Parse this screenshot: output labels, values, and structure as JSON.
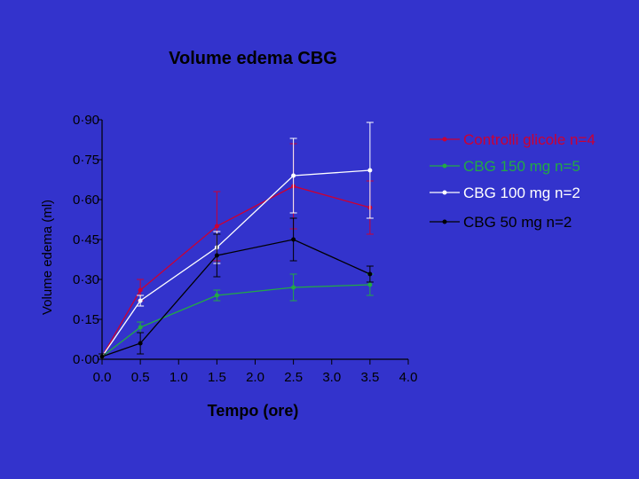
{
  "chart_data": {
    "type": "line",
    "title": "Volume edema CBG",
    "xlabel": "Tempo (ore)",
    "ylabel": "Volume edema (ml)",
    "xlim": [
      0,
      4
    ],
    "ylim": [
      0,
      0.9
    ],
    "x_ticks": [
      "0.0",
      "0.5",
      "1.0",
      "1.5",
      "2.0",
      "2.5",
      "3.0",
      "3.5",
      "4.0"
    ],
    "y_ticks": [
      "0·00",
      "0·15",
      "0·30",
      "0·45",
      "0·60",
      "0·75",
      "0·90"
    ],
    "grid": false,
    "legend_position": "right",
    "series": [
      {
        "name": "Controlli glicole n=4",
        "color": "#CC0033",
        "x": [
          0,
          0.5,
          1.5,
          2.5,
          3.5
        ],
        "y": [
          0.01,
          0.26,
          0.5,
          0.65,
          0.57
        ],
        "err": [
          0.01,
          0.04,
          0.13,
          0.16,
          0.1
        ]
      },
      {
        "name": "CBG 150 mg n=5",
        "color": "#22AA44",
        "x": [
          0,
          0.5,
          1.5,
          2.5,
          3.5
        ],
        "y": [
          0.01,
          0.12,
          0.24,
          0.27,
          0.28
        ],
        "err": [
          0.01,
          0.02,
          0.02,
          0.05,
          0.04
        ]
      },
      {
        "name": "CBG 100 mg n=2",
        "color": "#FFFFFF",
        "x": [
          0,
          0.5,
          1.5,
          2.5,
          3.5
        ],
        "y": [
          0.01,
          0.22,
          0.42,
          0.69,
          0.71
        ],
        "err": [
          0.01,
          0.02,
          0.06,
          0.14,
          0.18
        ]
      },
      {
        "name": "CBG 50 mg n=2",
        "color": "#000000",
        "x": [
          0,
          0.5,
          1.5,
          2.5,
          3.5
        ],
        "y": [
          0.01,
          0.06,
          0.39,
          0.45,
          0.32
        ],
        "err": [
          0.01,
          0.04,
          0.08,
          0.08,
          0.03
        ]
      }
    ]
  }
}
